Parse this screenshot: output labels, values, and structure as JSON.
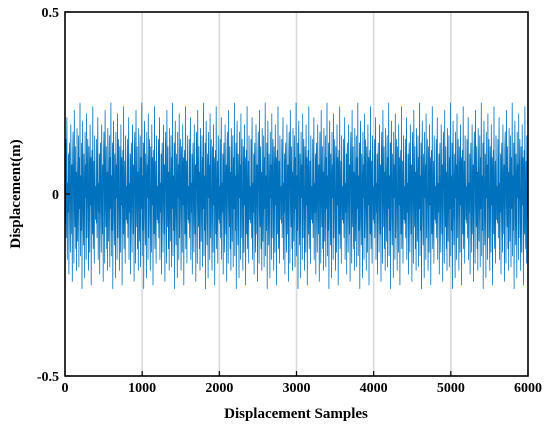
{
  "chart_data": {
    "type": "line",
    "title": "",
    "xlabel": "Displacement Samples",
    "ylabel": "Displacement(m)",
    "xlim": [
      0,
      6000
    ],
    "ylim": [
      -0.5,
      0.5
    ],
    "x_ticks": [
      0,
      1000,
      2000,
      3000,
      4000,
      5000,
      6000
    ],
    "y_ticks": [
      -0.5,
      0,
      0.5
    ],
    "x_tick_labels": [
      "0",
      "1000",
      "2000",
      "3000",
      "4000",
      "5000",
      "6000"
    ],
    "y_tick_labels": [
      "-0.5",
      "0",
      "0.5"
    ],
    "grid": "vertical",
    "series": [
      {
        "color": "#0072BD",
        "x_start": 0,
        "x_step": 5,
        "sample_count": 1201,
        "values": [
          0.02,
          -0.08,
          0.15,
          -0.12,
          0.06,
          0.21,
          -0.18,
          0.03,
          -0.05,
          0.11,
          -0.22,
          0.09,
          0.14,
          -0.07,
          -0.16,
          0.19,
          0.04,
          -0.11,
          0.08,
          -0.24,
          0.12,
          0.17,
          -0.03,
          -0.19,
          0.23,
          0.01,
          -0.09,
          0.13,
          -0.15,
          0.06,
          -0.21,
          0.18,
          0.07,
          -0.13,
          0.02,
          0.16,
          -0.2,
          0.1,
          -0.04,
          0.25,
          -0.17,
          0.05,
          -0.1,
          0.14,
          -0.26,
          0.09,
          0.2,
          -0.06,
          -0.14,
          0.11,
          0.03,
          -0.23,
          0.17,
          -0.01,
          0.08,
          -0.18,
          0.22,
          -0.12,
          0.04,
          0.15,
          -0.08,
          -0.21,
          0.13,
          0.06,
          -0.16,
          0.19,
          -0.03,
          0.1,
          -0.25,
          0.07,
          0.12,
          -0.11,
          0.24,
          -0.15,
          -0.02,
          0.09,
          -0.19,
          0.16,
          0.05,
          -0.07
        ]
      }
    ]
  }
}
